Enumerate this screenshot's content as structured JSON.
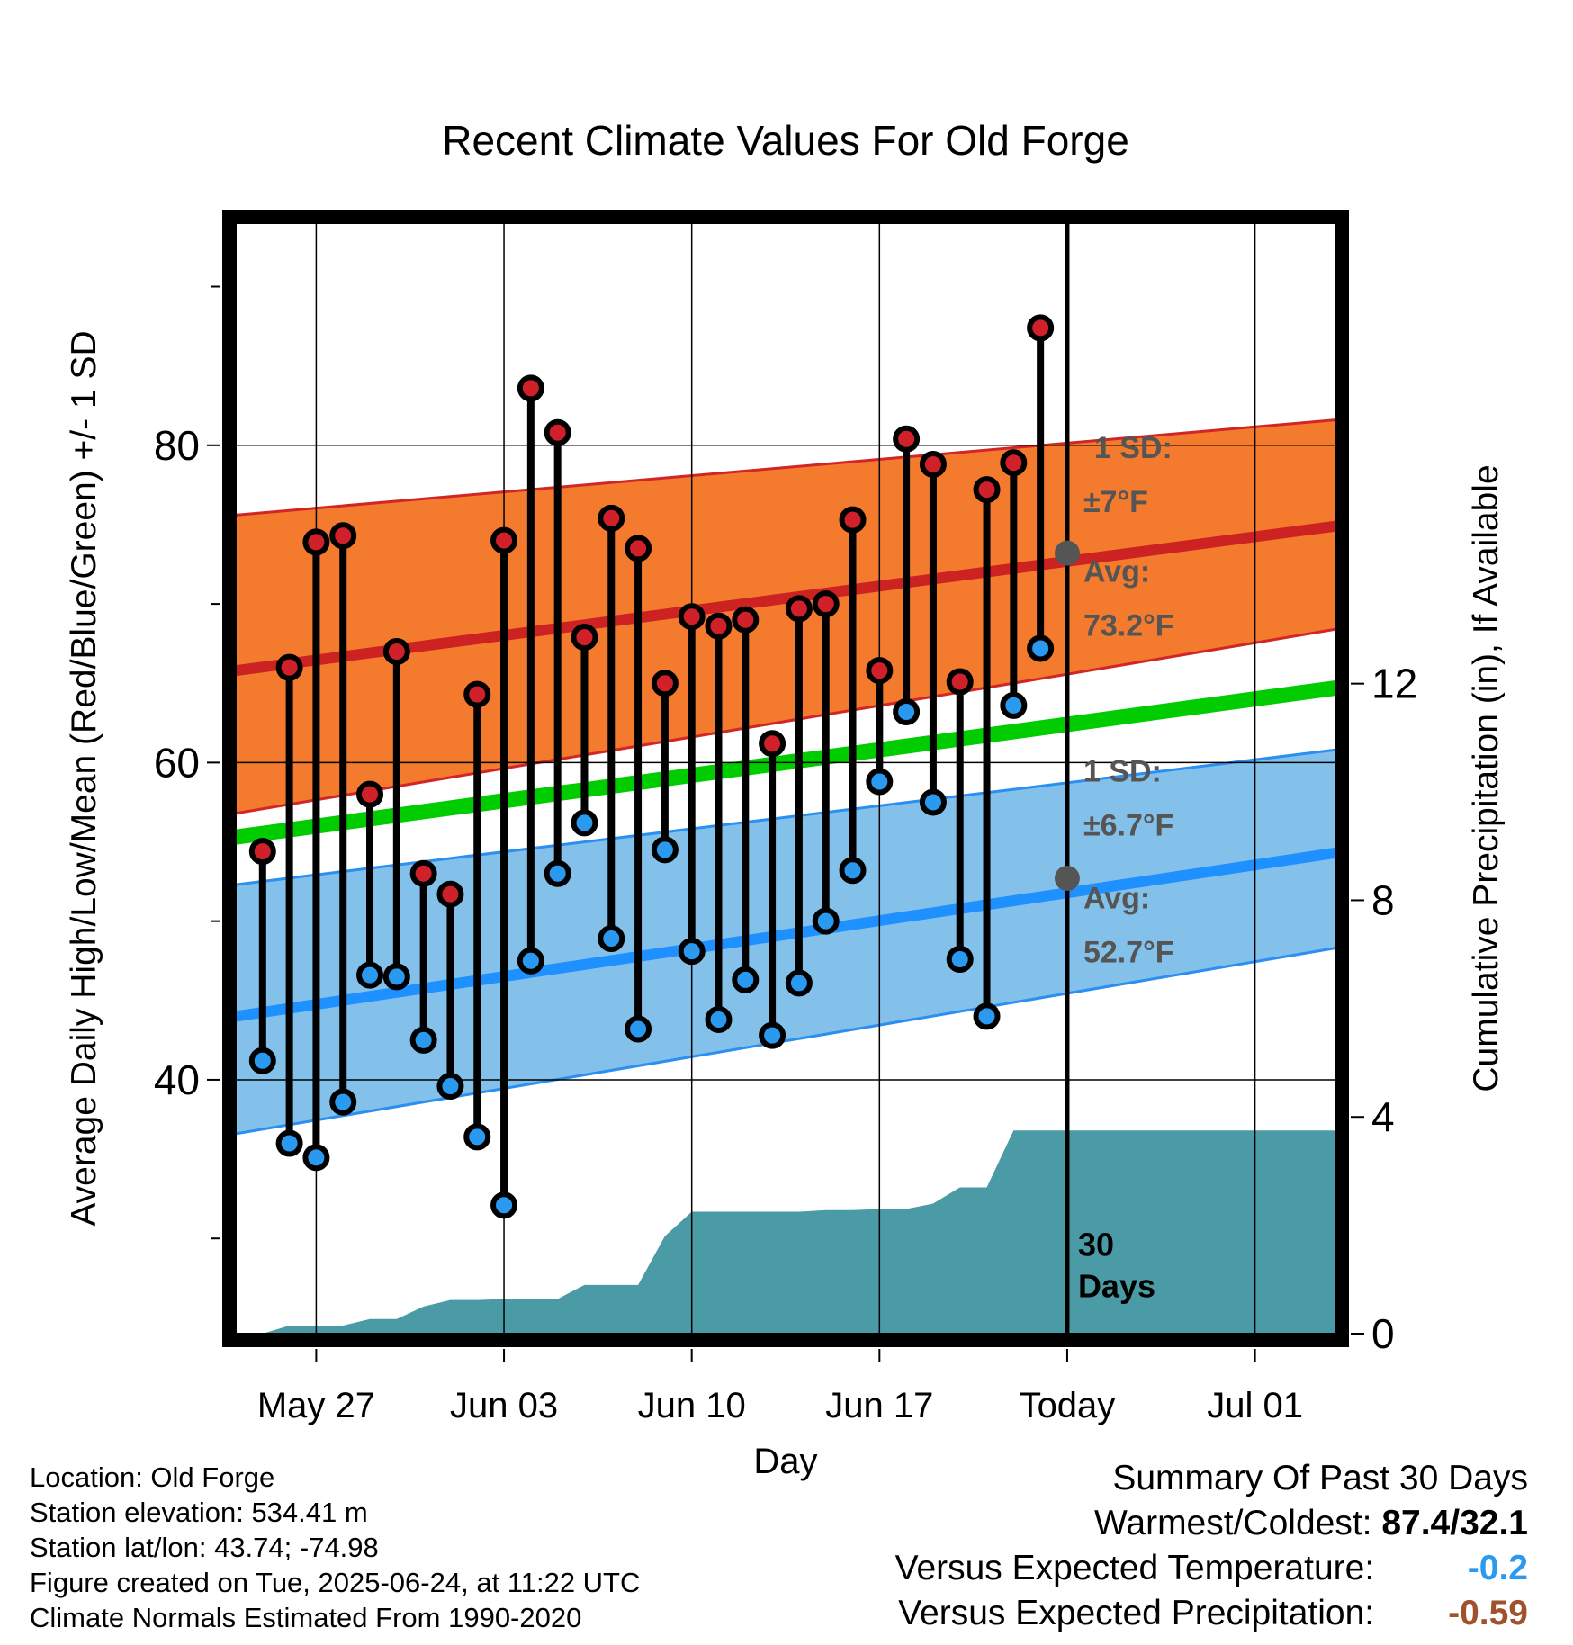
{
  "chart_data": {
    "type": "line",
    "title": "Recent Climate Values For Old Forge",
    "xlabel": "Day",
    "ylabel": "Average Daily High/Low/Mean (Red/Blue/Green) +/- 1 SD",
    "y2label": "Cumulative Precipitation (in), If Available",
    "xlim": [
      "2025-05-24",
      "2025-07-04"
    ],
    "ylim": [
      24,
      94
    ],
    "y2lim": [
      0,
      20.5
    ],
    "x_ticks": [
      {
        "date": "2025-05-27",
        "label": "May 27"
      },
      {
        "date": "2025-06-03",
        "label": "Jun 03"
      },
      {
        "date": "2025-06-10",
        "label": "Jun 10"
      },
      {
        "date": "2025-06-17",
        "label": "Jun 17"
      },
      {
        "date": "2025-06-24",
        "label": "Today"
      },
      {
        "date": "2025-07-01",
        "label": "Jul 01"
      }
    ],
    "y_ticks_labeled": [
      40,
      60,
      80
    ],
    "y_ticks_minor": [
      30,
      50,
      70,
      90
    ],
    "y2_ticks": [
      0,
      4,
      8,
      12
    ],
    "grid": true,
    "normals": {
      "dates": [
        "2025-05-24",
        "2025-07-04"
      ],
      "high_mean": [
        65.8,
        74.9
      ],
      "high_upper": [
        75.6,
        81.6
      ],
      "high_lower": [
        56.8,
        68.4
      ],
      "mean": [
        55.3,
        64.7
      ],
      "low_mean": [
        44.0,
        54.3
      ],
      "low_upper": [
        52.3,
        60.8
      ],
      "low_lower": [
        36.6,
        48.3
      ]
    },
    "high_sd_label": [
      "1 SD:",
      "±7°F"
    ],
    "high_avg_label": [
      "Avg:",
      "73.2°F"
    ],
    "high_avg_value": 73.2,
    "low_sd_label": [
      "1 SD:",
      "±6.7°F"
    ],
    "low_avg_label": [
      "Avg:",
      "52.7°F"
    ],
    "low_avg_value": 52.7,
    "today_label": [
      "30",
      "Days"
    ],
    "daily": {
      "dates": [
        "2025-05-25",
        "2025-05-26",
        "2025-05-27",
        "2025-05-28",
        "2025-05-29",
        "2025-05-30",
        "2025-05-31",
        "2025-06-01",
        "2025-06-02",
        "2025-06-03",
        "2025-06-04",
        "2025-06-05",
        "2025-06-06",
        "2025-06-07",
        "2025-06-08",
        "2025-06-09",
        "2025-06-10",
        "2025-06-11",
        "2025-06-12",
        "2025-06-13",
        "2025-06-14",
        "2025-06-15",
        "2025-06-16",
        "2025-06-17",
        "2025-06-18",
        "2025-06-19",
        "2025-06-20",
        "2025-06-21",
        "2025-06-22",
        "2025-06-23"
      ],
      "high": [
        54.4,
        66.0,
        73.9,
        74.3,
        58.0,
        67.0,
        53.0,
        51.7,
        64.3,
        74.0,
        83.6,
        80.8,
        67.9,
        75.4,
        73.5,
        65.0,
        69.2,
        68.6,
        69.0,
        61.2,
        69.7,
        70.0,
        75.3,
        65.8,
        80.4,
        78.8,
        65.1,
        77.2,
        78.9,
        87.4
      ],
      "low": [
        41.2,
        36.0,
        35.1,
        38.6,
        46.6,
        46.5,
        42.5,
        39.6,
        36.4,
        32.1,
        47.5,
        53.0,
        56.2,
        48.9,
        43.2,
        54.5,
        48.1,
        43.8,
        46.3,
        42.8,
        46.1,
        50.0,
        53.2,
        58.8,
        63.2,
        57.5,
        47.6,
        44.0,
        63.6,
        67.2
      ]
    },
    "precip": {
      "dates": [
        "2025-05-24",
        "2025-05-25",
        "2025-05-26",
        "2025-05-27",
        "2025-05-28",
        "2025-05-29",
        "2025-05-30",
        "2025-05-31",
        "2025-06-01",
        "2025-06-02",
        "2025-06-03",
        "2025-06-04",
        "2025-06-05",
        "2025-06-06",
        "2025-06-07",
        "2025-06-08",
        "2025-06-09",
        "2025-06-10",
        "2025-06-11",
        "2025-06-12",
        "2025-06-13",
        "2025-06-14",
        "2025-06-15",
        "2025-06-16",
        "2025-06-17",
        "2025-06-18",
        "2025-06-19",
        "2025-06-20",
        "2025-06-21",
        "2025-06-22",
        "2025-06-23",
        "2025-06-24",
        "2025-07-04"
      ],
      "values": [
        0,
        0,
        0.15,
        0.15,
        0.15,
        0.27,
        0.27,
        0.5,
        0.62,
        0.62,
        0.64,
        0.64,
        0.64,
        0.9,
        0.9,
        0.9,
        1.8,
        2.25,
        2.25,
        2.25,
        2.25,
        2.25,
        2.28,
        2.28,
        2.3,
        2.3,
        2.4,
        2.7,
        2.7,
        3.75,
        3.75,
        3.75,
        3.75
      ]
    },
    "colors": {
      "high": "#cc2222",
      "high_band": "#f47a2d",
      "mean": "#00cc00",
      "low": "#1e90ff",
      "low_band": "#83c1ea",
      "precip": "#4a9ba5",
      "high_marker": "#d0202a",
      "low_marker": "#2a9af0"
    }
  },
  "footer": {
    "location": "Location: Old Forge",
    "elevation": "Station elevation: 534.41 m",
    "latlon": "Station lat/lon: 43.74; -74.98",
    "created": "Figure created on Tue, 2025-06-24, at 11:22 UTC",
    "normals": "Climate Normals Estimated From 1990-2020"
  },
  "summary": {
    "title": "Summary Of Past 30 Days",
    "warm_cold_label": "Warmest/Coldest:",
    "warm_cold_value": "87.4/32.1",
    "temp_label": "Versus Expected Temperature:",
    "temp_value": "-0.2",
    "temp_color": "#2a9af0",
    "precip_label": "Versus Expected Precipitation:",
    "precip_value": "-0.59",
    "precip_color": "#a0522d"
  }
}
